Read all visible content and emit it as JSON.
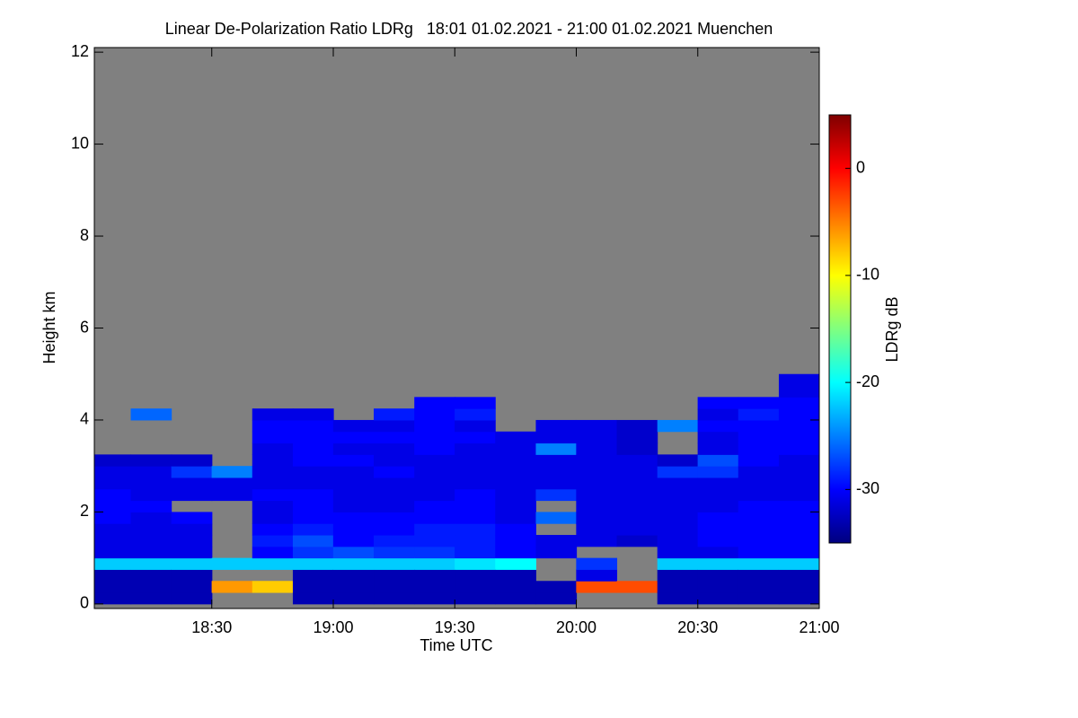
{
  "chart_data": {
    "type": "heatmap",
    "title": "Linear De-Polarization Ratio LDRg   18:01 01.02.2021 - 21:00 01.02.2021 Muenchen",
    "x_label": "Time UTC",
    "y_label": "Height km",
    "colorbar_label": "LDRg dB",
    "xlim": [
      18.0167,
      21.0
    ],
    "ylim": [
      -0.1,
      12.1
    ],
    "clim": [
      -35,
      5
    ],
    "xticks": [
      {
        "value": 18.5,
        "label": "18:30"
      },
      {
        "value": 19.0,
        "label": "19:00"
      },
      {
        "value": 19.5,
        "label": "19:30"
      },
      {
        "value": 20.0,
        "label": "20:00"
      },
      {
        "value": 20.5,
        "label": "20:30"
      },
      {
        "value": 21.0,
        "label": "21:00"
      }
    ],
    "yticks": [
      0,
      2,
      4,
      6,
      8,
      10,
      12
    ],
    "cticks": [
      0,
      -10,
      -20,
      -30
    ],
    "colormap": "jet",
    "background": "#808080",
    "x": [
      18.083,
      18.25,
      18.417,
      18.583,
      18.75,
      18.917,
      19.083,
      19.25,
      19.417,
      19.583,
      19.75,
      19.917,
      20.083,
      20.25,
      20.417,
      20.583,
      20.75,
      20.917
    ],
    "y": [
      0.125,
      0.375,
      0.625,
      0.875,
      1.125,
      1.375,
      1.625,
      1.875,
      2.125,
      2.375,
      2.625,
      2.875,
      3.125,
      3.375,
      3.625,
      3.875,
      4.125,
      4.375,
      4.625,
      4.875
    ],
    "z": [
      [
        -33,
        -33,
        -33,
        -22,
        -31,
        -31,
        -31,
        -30,
        -30,
        -30,
        -31,
        -31,
        -32,
        null,
        null,
        null,
        null,
        null,
        null,
        null
      ],
      [
        -33,
        -33,
        -33,
        -22,
        -31,
        -31,
        -31,
        -31,
        -30,
        -31,
        -31,
        -31,
        -32,
        null,
        null,
        null,
        -26,
        null,
        null,
        null
      ],
      [
        -33,
        -33,
        -33,
        -22,
        -31,
        -31,
        -31,
        -30,
        null,
        -31,
        -31,
        -28,
        -32,
        null,
        null,
        null,
        null,
        null,
        null,
        null
      ],
      [
        null,
        -6,
        null,
        -22,
        null,
        null,
        null,
        null,
        null,
        -31,
        -31,
        -25,
        null,
        null,
        null,
        null,
        null,
        null,
        null,
        null
      ],
      [
        null,
        -8,
        null,
        -22,
        -30,
        -29,
        -30,
        -31,
        -31,
        -30,
        -31,
        -31,
        -31,
        -31,
        -30,
        -30,
        -31,
        null,
        null,
        null
      ],
      [
        -33,
        -33,
        -33,
        -22,
        -28,
        -27,
        -29,
        -30,
        -30,
        -30,
        -31,
        -31,
        -30,
        -30,
        -30,
        -30,
        -31,
        null,
        null,
        null
      ],
      [
        -33,
        -33,
        -33,
        -22,
        -27,
        -30,
        -30,
        -30,
        -31,
        -31,
        -31,
        -31,
        -30,
        -31,
        -30,
        -31,
        null,
        null,
        null,
        null
      ],
      [
        -33,
        -33,
        -33,
        -22,
        -28,
        -29,
        -30,
        -30,
        -31,
        -31,
        -31,
        -30,
        -31,
        -31,
        -30,
        -31,
        -29,
        null,
        null,
        null
      ],
      [
        -33,
        -33,
        -33,
        -22,
        -28,
        -29,
        -29,
        -30,
        -30,
        -31,
        -31,
        -31,
        -31,
        -30,
        -30,
        -30,
        -30,
        -30,
        null,
        null
      ],
      [
        -33,
        -33,
        -33,
        -21,
        -29,
        -29,
        -29,
        -30,
        -30,
        -30,
        -31,
        -31,
        -31,
        -31,
        -30,
        -31,
        -29,
        -30,
        null,
        null
      ],
      [
        -33,
        -33,
        -33,
        -20,
        -30,
        -30,
        -30,
        -31,
        -31,
        -31,
        -31,
        -31,
        -31,
        -31,
        -31,
        null,
        null,
        null,
        null,
        null
      ],
      [
        -33,
        -33,
        null,
        null,
        -31,
        -31,
        null,
        -26,
        null,
        -28,
        -31,
        -31,
        -31,
        -25,
        -31,
        -31,
        null,
        null,
        null,
        null
      ],
      [
        null,
        -3,
        -31,
        -28,
        null,
        -31,
        -31,
        -31,
        -31,
        -31,
        -31,
        -31,
        -31,
        -31,
        -31,
        -31,
        null,
        null,
        null,
        null
      ],
      [
        null,
        -3,
        null,
        null,
        null,
        -32,
        -31,
        -31,
        -31,
        -31,
        -31,
        -31,
        -31,
        -32,
        -32,
        -32,
        null,
        null,
        null,
        null
      ],
      [
        -33,
        -33,
        -33,
        -22,
        -31,
        -31,
        -31,
        -31,
        -31,
        -31,
        -31,
        -28,
        -32,
        null,
        null,
        -25,
        null,
        null,
        null,
        null
      ],
      [
        -33,
        -33,
        -33,
        -22,
        -31,
        -30,
        -30,
        -30,
        -31,
        -31,
        -31,
        -28,
        -27,
        -31,
        -31,
        -30,
        -31,
        -30,
        null,
        null
      ],
      [
        -33,
        -33,
        -33,
        -22,
        -30,
        -30,
        -30,
        -30,
        -30,
        -31,
        -31,
        -31,
        -30,
        -30,
        -30,
        -30,
        -29,
        -30,
        null,
        null
      ],
      [
        -33,
        -33,
        -33,
        -22,
        -30,
        -30,
        -30,
        -30,
        -30,
        -31,
        -31,
        -31,
        -31,
        -30,
        -30,
        -30,
        -30,
        -30,
        -31,
        -31
      ]
    ]
  }
}
